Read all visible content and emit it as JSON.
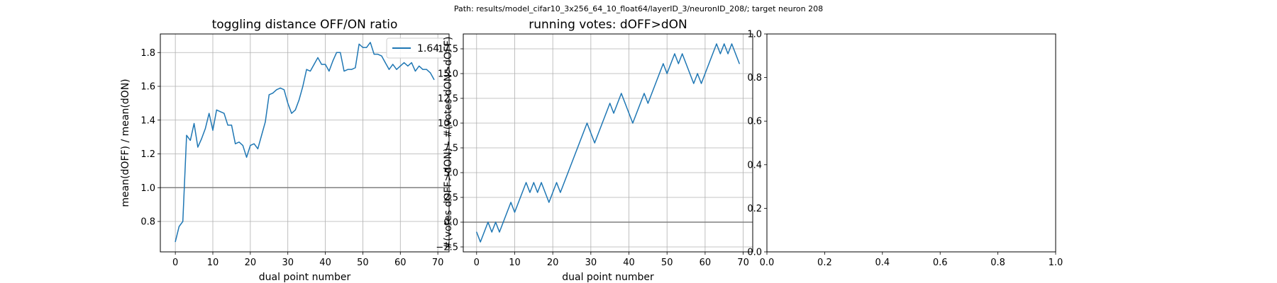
{
  "suptitle": "Path: results/model_cifar10_3x256_64_10_float64/layerID_3/neuronID_208/; target neuron 208",
  "colors": {
    "series": "#1f77b4",
    "refline": "#808080",
    "grid": "#b0b0b0"
  },
  "chart_data": [
    {
      "type": "line",
      "title": "toggling distance OFF/ON ratio",
      "xlabel": "dual point number",
      "ylabel": "mean(dOFF) / mean(dON)",
      "xlim": [
        -4,
        73
      ],
      "ylim": [
        0.62,
        1.91
      ],
      "xticks": [
        0,
        10,
        20,
        30,
        40,
        50,
        60,
        70
      ],
      "xtick_labels": [
        "0",
        "10",
        "20",
        "30",
        "40",
        "50",
        "60",
        "70"
      ],
      "yticks": [
        0.8,
        1.0,
        1.2,
        1.4,
        1.6,
        1.8
      ],
      "ytick_labels": [
        "0.8",
        "1.0",
        "1.2",
        "1.4",
        "1.6",
        "1.8"
      ],
      "grid": true,
      "hline": 1.0,
      "legend": {
        "placement": "top-right",
        "entries": [
          "1.64"
        ]
      },
      "series": [
        {
          "name": "1.64",
          "x": [
            0,
            1,
            2,
            3,
            4,
            5,
            6,
            7,
            8,
            9,
            10,
            11,
            12,
            13,
            14,
            15,
            16,
            17,
            18,
            19,
            20,
            21,
            22,
            23,
            24,
            25,
            26,
            27,
            28,
            29,
            30,
            31,
            32,
            33,
            34,
            35,
            36,
            37,
            38,
            39,
            40,
            41,
            42,
            43,
            44,
            45,
            46,
            47,
            48,
            49,
            50,
            51,
            52,
            53,
            54,
            55,
            56,
            57,
            58,
            59,
            60,
            61,
            62,
            63,
            64,
            65,
            66,
            67,
            68,
            69
          ],
          "values": [
            0.68,
            0.77,
            0.8,
            1.31,
            1.28,
            1.38,
            1.24,
            1.29,
            1.35,
            1.44,
            1.34,
            1.46,
            1.45,
            1.44,
            1.37,
            1.37,
            1.26,
            1.27,
            1.25,
            1.18,
            1.25,
            1.26,
            1.23,
            1.31,
            1.39,
            1.55,
            1.56,
            1.58,
            1.59,
            1.58,
            1.5,
            1.44,
            1.46,
            1.52,
            1.6,
            1.7,
            1.69,
            1.73,
            1.77,
            1.73,
            1.73,
            1.69,
            1.75,
            1.8,
            1.8,
            1.69,
            1.7,
            1.7,
            1.71,
            1.85,
            1.83,
            1.83,
            1.86,
            1.79,
            1.79,
            1.78,
            1.74,
            1.7,
            1.73,
            1.7,
            1.72,
            1.74,
            1.72,
            1.74,
            1.69,
            1.72,
            1.7,
            1.7,
            1.68,
            1.64
          ]
        }
      ]
    },
    {
      "type": "line",
      "title": "running votes: dOFF>dON",
      "xlabel": "dual point number",
      "ylabel": "#(votes dOFF>dON) - #(votes dON>dOFF)",
      "xlim": [
        -3.5,
        72.5
      ],
      "ylim": [
        -3,
        19
      ],
      "xticks": [
        0,
        10,
        20,
        30,
        40,
        50,
        60,
        70
      ],
      "xtick_labels": [
        "0",
        "10",
        "20",
        "30",
        "40",
        "50",
        "60",
        "70"
      ],
      "yticks": [
        -2.5,
        0,
        2.5,
        5,
        7.5,
        10,
        12.5,
        15,
        17.5
      ],
      "ytick_labels": [
        "−2.5",
        "0.0",
        "2.5",
        "5.0",
        "7.5",
        "10.0",
        "12.5",
        "15.0",
        "17.5"
      ],
      "grid": true,
      "hline": 0,
      "series": [
        {
          "x": [
            0,
            1,
            2,
            3,
            4,
            5,
            6,
            7,
            8,
            9,
            10,
            11,
            12,
            13,
            14,
            15,
            16,
            17,
            18,
            19,
            20,
            21,
            22,
            23,
            24,
            25,
            26,
            27,
            28,
            29,
            30,
            31,
            32,
            33,
            34,
            35,
            36,
            37,
            38,
            39,
            40,
            41,
            42,
            43,
            44,
            45,
            46,
            47,
            48,
            49,
            50,
            51,
            52,
            53,
            54,
            55,
            56,
            57,
            58,
            59,
            60,
            61,
            62,
            63,
            64,
            65,
            66,
            67,
            68,
            69
          ],
          "values": [
            -1,
            -2,
            -1,
            0,
            -1,
            0,
            -1,
            0,
            1,
            2,
            1,
            2,
            3,
            4,
            3,
            4,
            3,
            4,
            3,
            2,
            3,
            4,
            3,
            4,
            5,
            6,
            7,
            8,
            9,
            10,
            9,
            8,
            9,
            10,
            11,
            12,
            11,
            12,
            13,
            12,
            11,
            10,
            11,
            12,
            13,
            12,
            13,
            14,
            15,
            16,
            15,
            16,
            17,
            16,
            17,
            16,
            15,
            14,
            15,
            14,
            15,
            16,
            17,
            18,
            17,
            18,
            17,
            18,
            17,
            16
          ]
        }
      ]
    },
    {
      "type": "line",
      "title": "",
      "xlabel": "",
      "ylabel": "",
      "xlim": [
        0,
        1
      ],
      "ylim": [
        0,
        1
      ],
      "xticks": [
        0,
        0.2,
        0.4,
        0.6,
        0.8,
        1.0
      ],
      "xtick_labels": [
        "0.0",
        "0.2",
        "0.4",
        "0.6",
        "0.8",
        "1.0"
      ],
      "yticks": [
        0,
        0.2,
        0.4,
        0.6,
        0.8,
        1.0
      ],
      "ytick_labels": [
        "0.0",
        "0.2",
        "0.4",
        "0.6",
        "0.8",
        "1.0"
      ],
      "grid": false,
      "series": []
    }
  ]
}
